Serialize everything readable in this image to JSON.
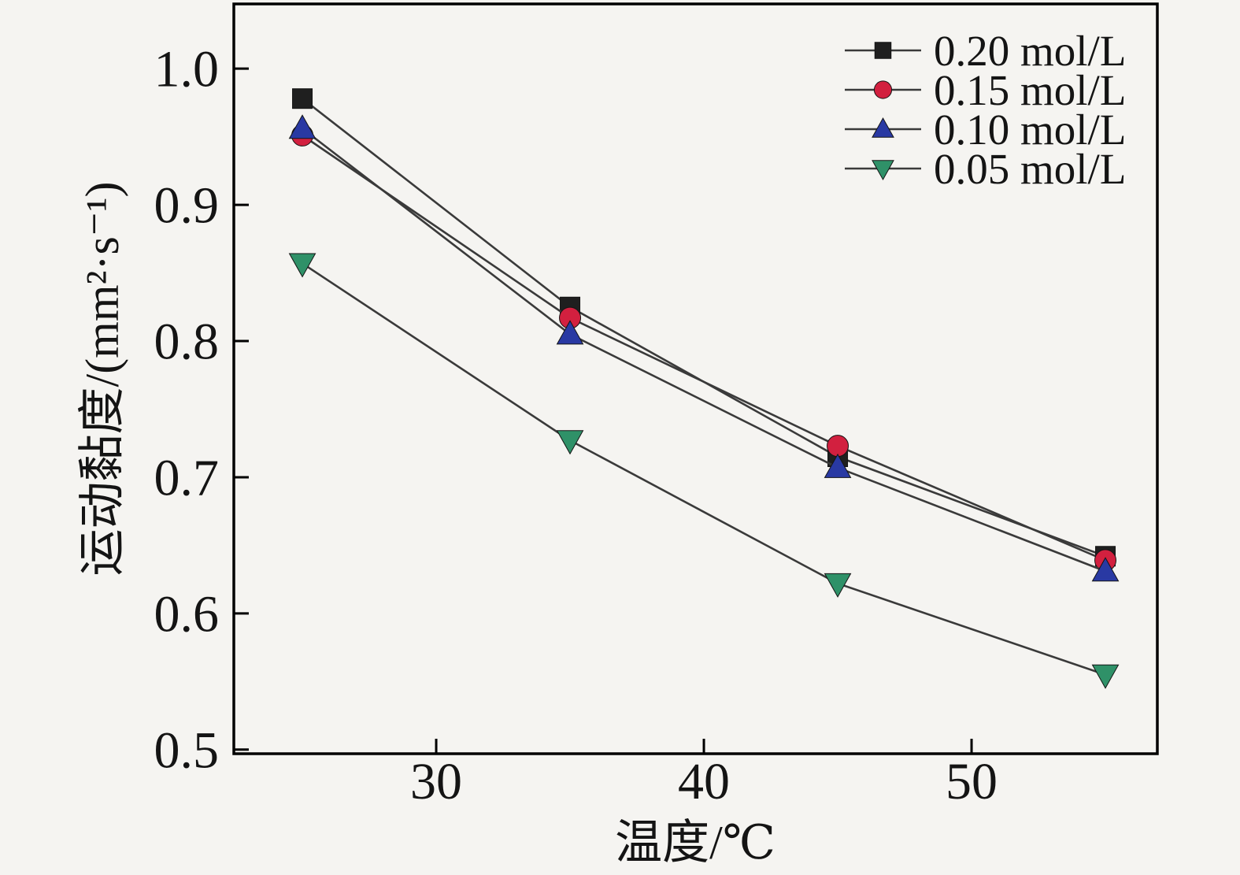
{
  "figure": {
    "background": "#f5f4f1",
    "axis_color": "#000000",
    "connector_line_color": "#3a3a3a",
    "text_color": "#141414"
  },
  "chart_data": {
    "type": "line",
    "title": "",
    "xlabel": "温度/℃",
    "ylabel": "运动黏度/(mm²·s⁻¹)",
    "x": [
      25,
      35,
      45,
      55
    ],
    "series": [
      {
        "name": "0.20 mol/L",
        "marker": "square",
        "color": "#1f1f1f",
        "values": [
          0.978,
          0.825,
          0.715,
          0.642
        ]
      },
      {
        "name": "0.15 mol/L",
        "marker": "circle",
        "color": "#d2203f",
        "values": [
          0.951,
          0.817,
          0.723,
          0.639
        ]
      },
      {
        "name": "0.10 mol/L",
        "marker": "triangle-up",
        "color": "#2939a3",
        "values": [
          0.956,
          0.805,
          0.707,
          0.631
        ]
      },
      {
        "name": "0.05 mol/L",
        "marker": "triangle-down",
        "color": "#2f9168",
        "values": [
          0.857,
          0.727,
          0.622,
          0.555
        ]
      }
    ],
    "xlim": [
      22.44,
      56.94
    ],
    "ylim": [
      0.497,
      1.0475
    ],
    "xticks": [
      30,
      40,
      50
    ],
    "yticks": [
      0.5,
      0.6,
      0.7,
      0.8,
      0.9,
      1.0
    ],
    "grid": false,
    "legend_position": "top-right"
  }
}
